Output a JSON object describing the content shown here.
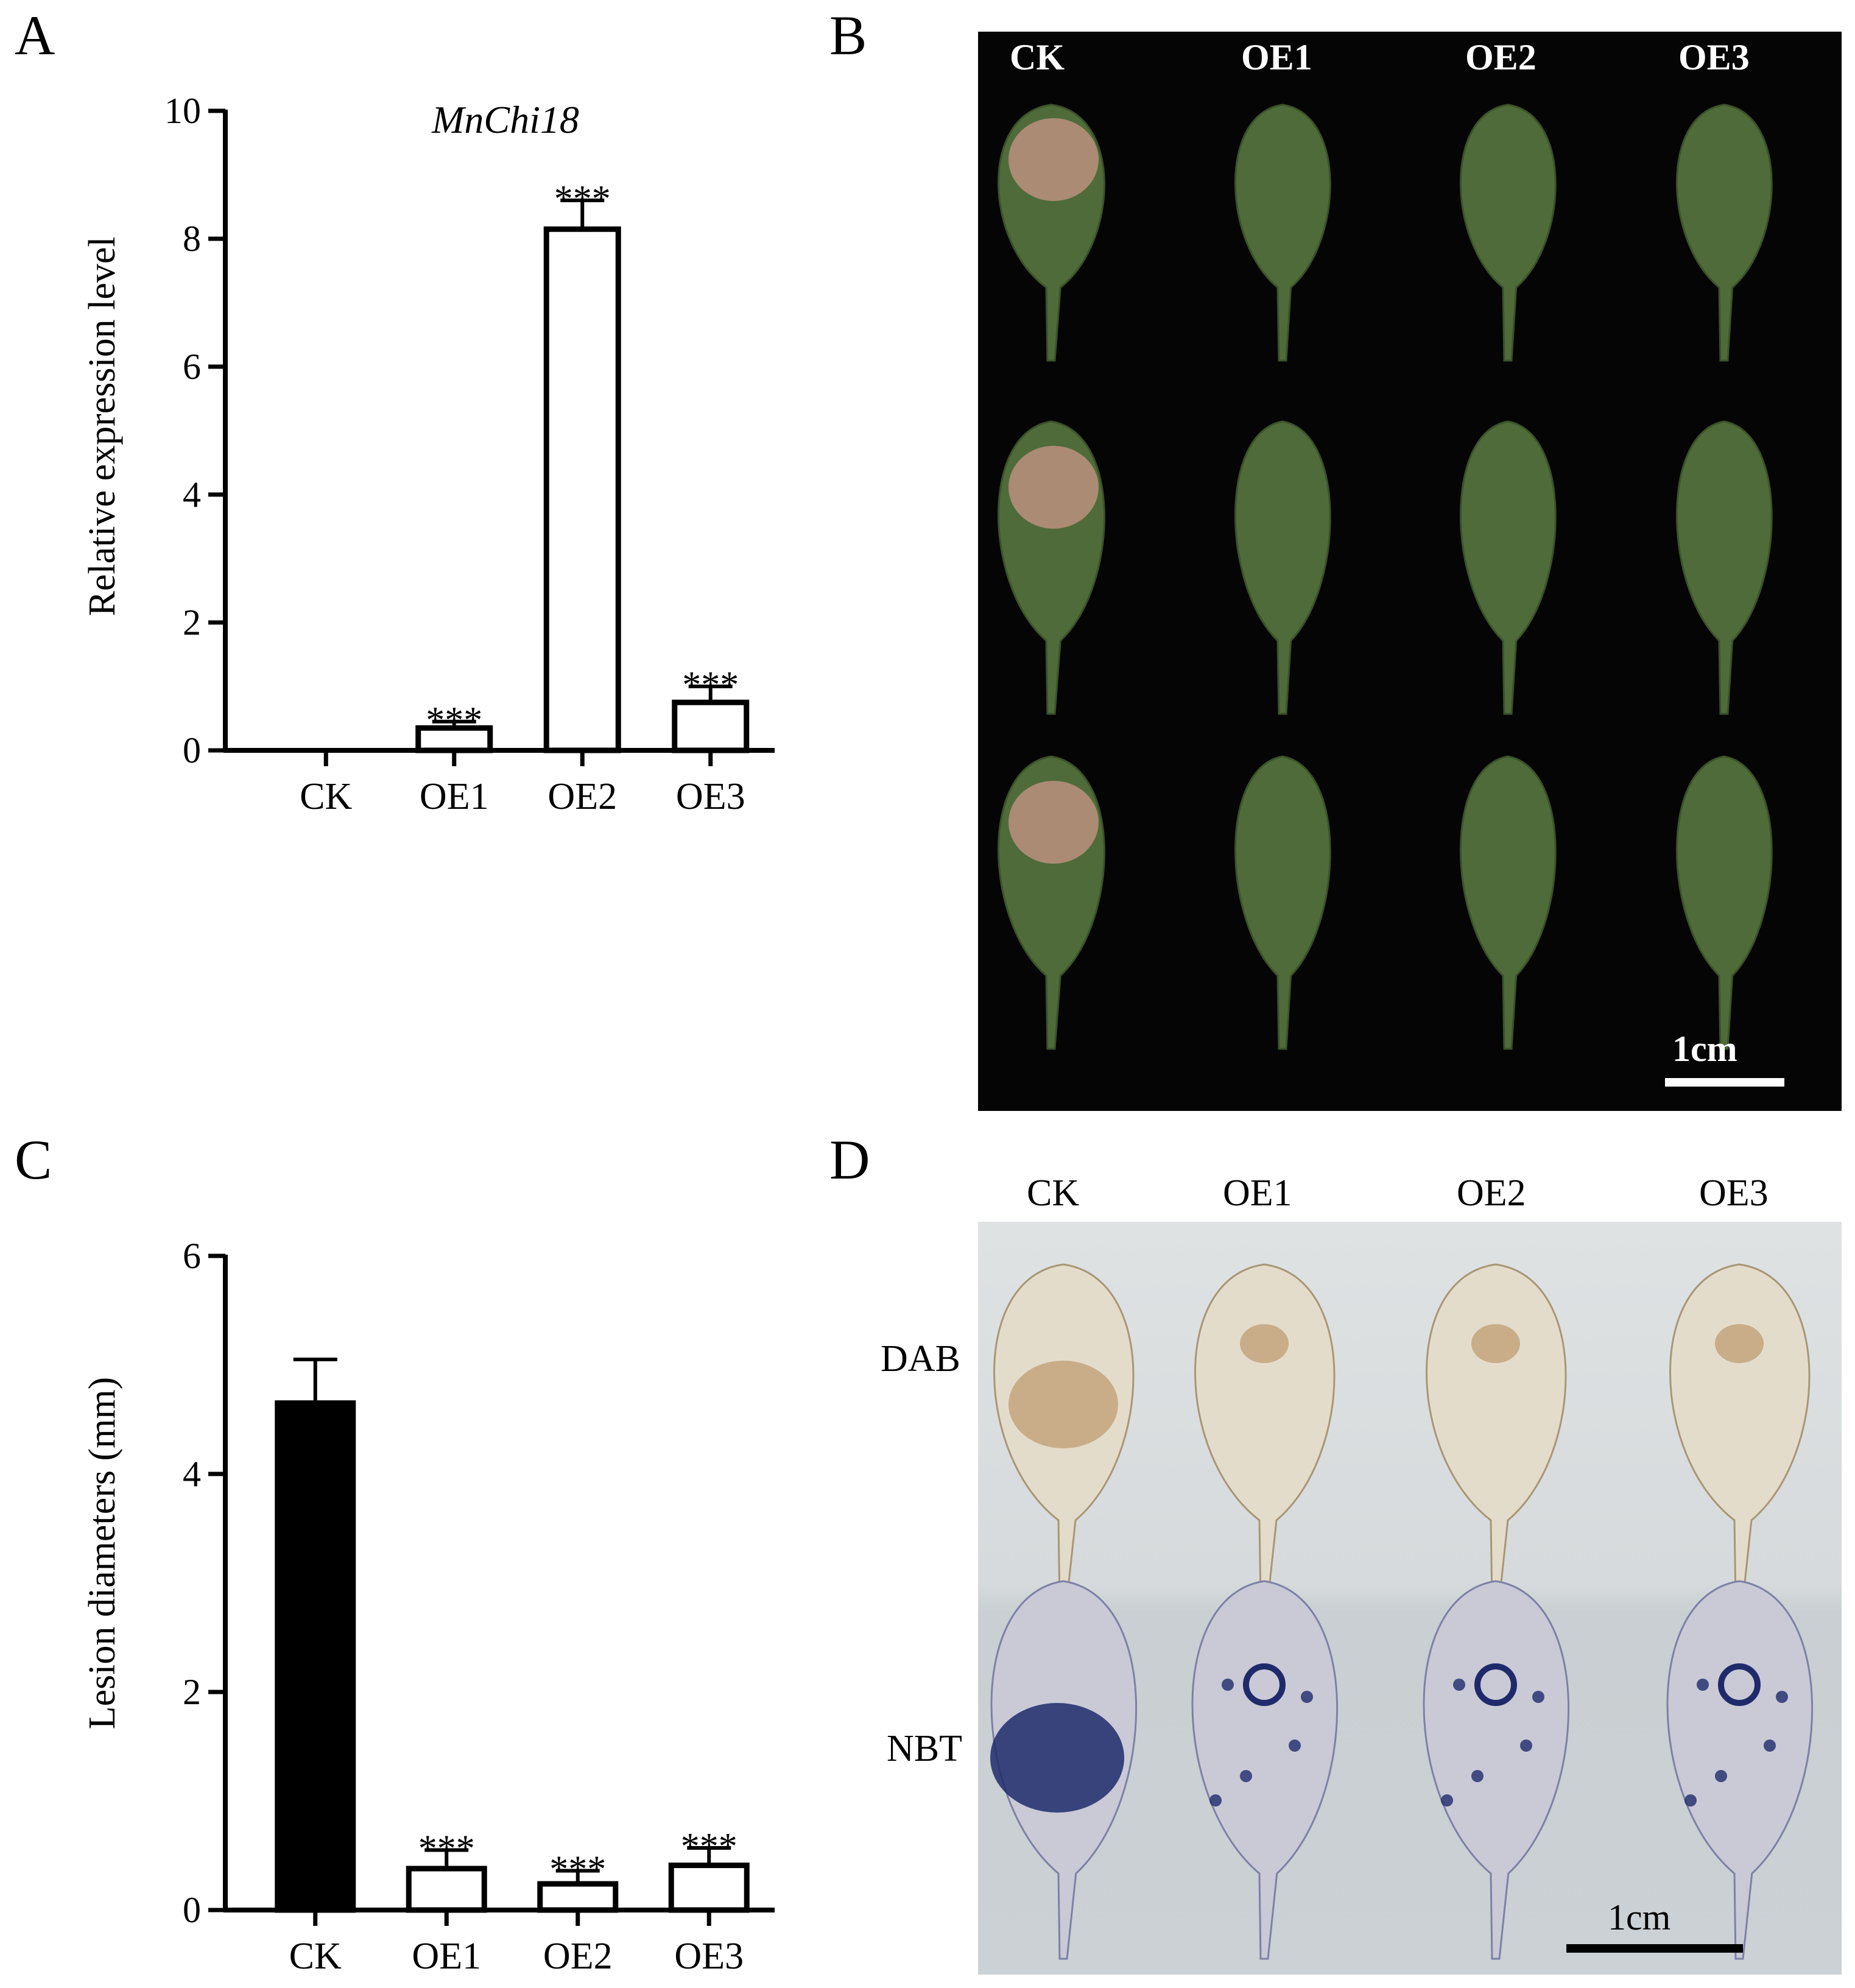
{
  "panels": {
    "a": "A",
    "b": "B",
    "c": "C",
    "d": "D"
  },
  "chart_data": [
    {
      "type": "bar",
      "title": "MnChi18",
      "ylabel": "Relative expression level",
      "xlabel": "",
      "categories": [
        "CK",
        "OE1",
        "OE2",
        "OE3"
      ],
      "values": [
        0,
        0.35,
        8.15,
        0.75
      ],
      "errors": [
        0,
        0.1,
        0.45,
        0.25
      ],
      "significance": [
        "",
        "***",
        "***",
        "***"
      ],
      "ylim": [
        0,
        10
      ],
      "yticks": [
        0,
        2,
        4,
        6,
        8,
        10
      ],
      "bar_fills": [
        "#ffffff",
        "#ffffff",
        "#ffffff",
        "#ffffff"
      ]
    },
    {
      "type": "bar",
      "title": "",
      "ylabel": "Lesion diameters (mm)",
      "xlabel": "",
      "categories": [
        "CK",
        "OE1",
        "OE2",
        "OE3"
      ],
      "values": [
        4.65,
        0.38,
        0.24,
        0.41
      ],
      "errors": [
        0.4,
        0.17,
        0.12,
        0.16
      ],
      "significance": [
        "",
        "***",
        "***",
        "***"
      ],
      "ylim": [
        0,
        6
      ],
      "yticks": [
        0,
        2,
        4,
        6
      ],
      "bar_fills": [
        "#000000",
        "#ffffff",
        "#ffffff",
        "#ffffff"
      ]
    }
  ],
  "photo_b": {
    "columns": [
      "CK",
      "OE1",
      "OE2",
      "OE3"
    ],
    "scale_label": "1cm",
    "background": "#050505",
    "leaf_color": "#4f6b3a",
    "lesion_color": "#b58f7a"
  },
  "photo_d": {
    "columns": [
      "CK",
      "OE1",
      "OE2",
      "OE3"
    ],
    "rows": [
      "DAB",
      "NBT"
    ],
    "scale_label": "1cm",
    "dab_leaf_color": "#e4dccb",
    "dab_stain_color": "#a8743a",
    "nbt_leaf_color": "#c9cad6",
    "nbt_stain_color": "#1f2a6b"
  }
}
